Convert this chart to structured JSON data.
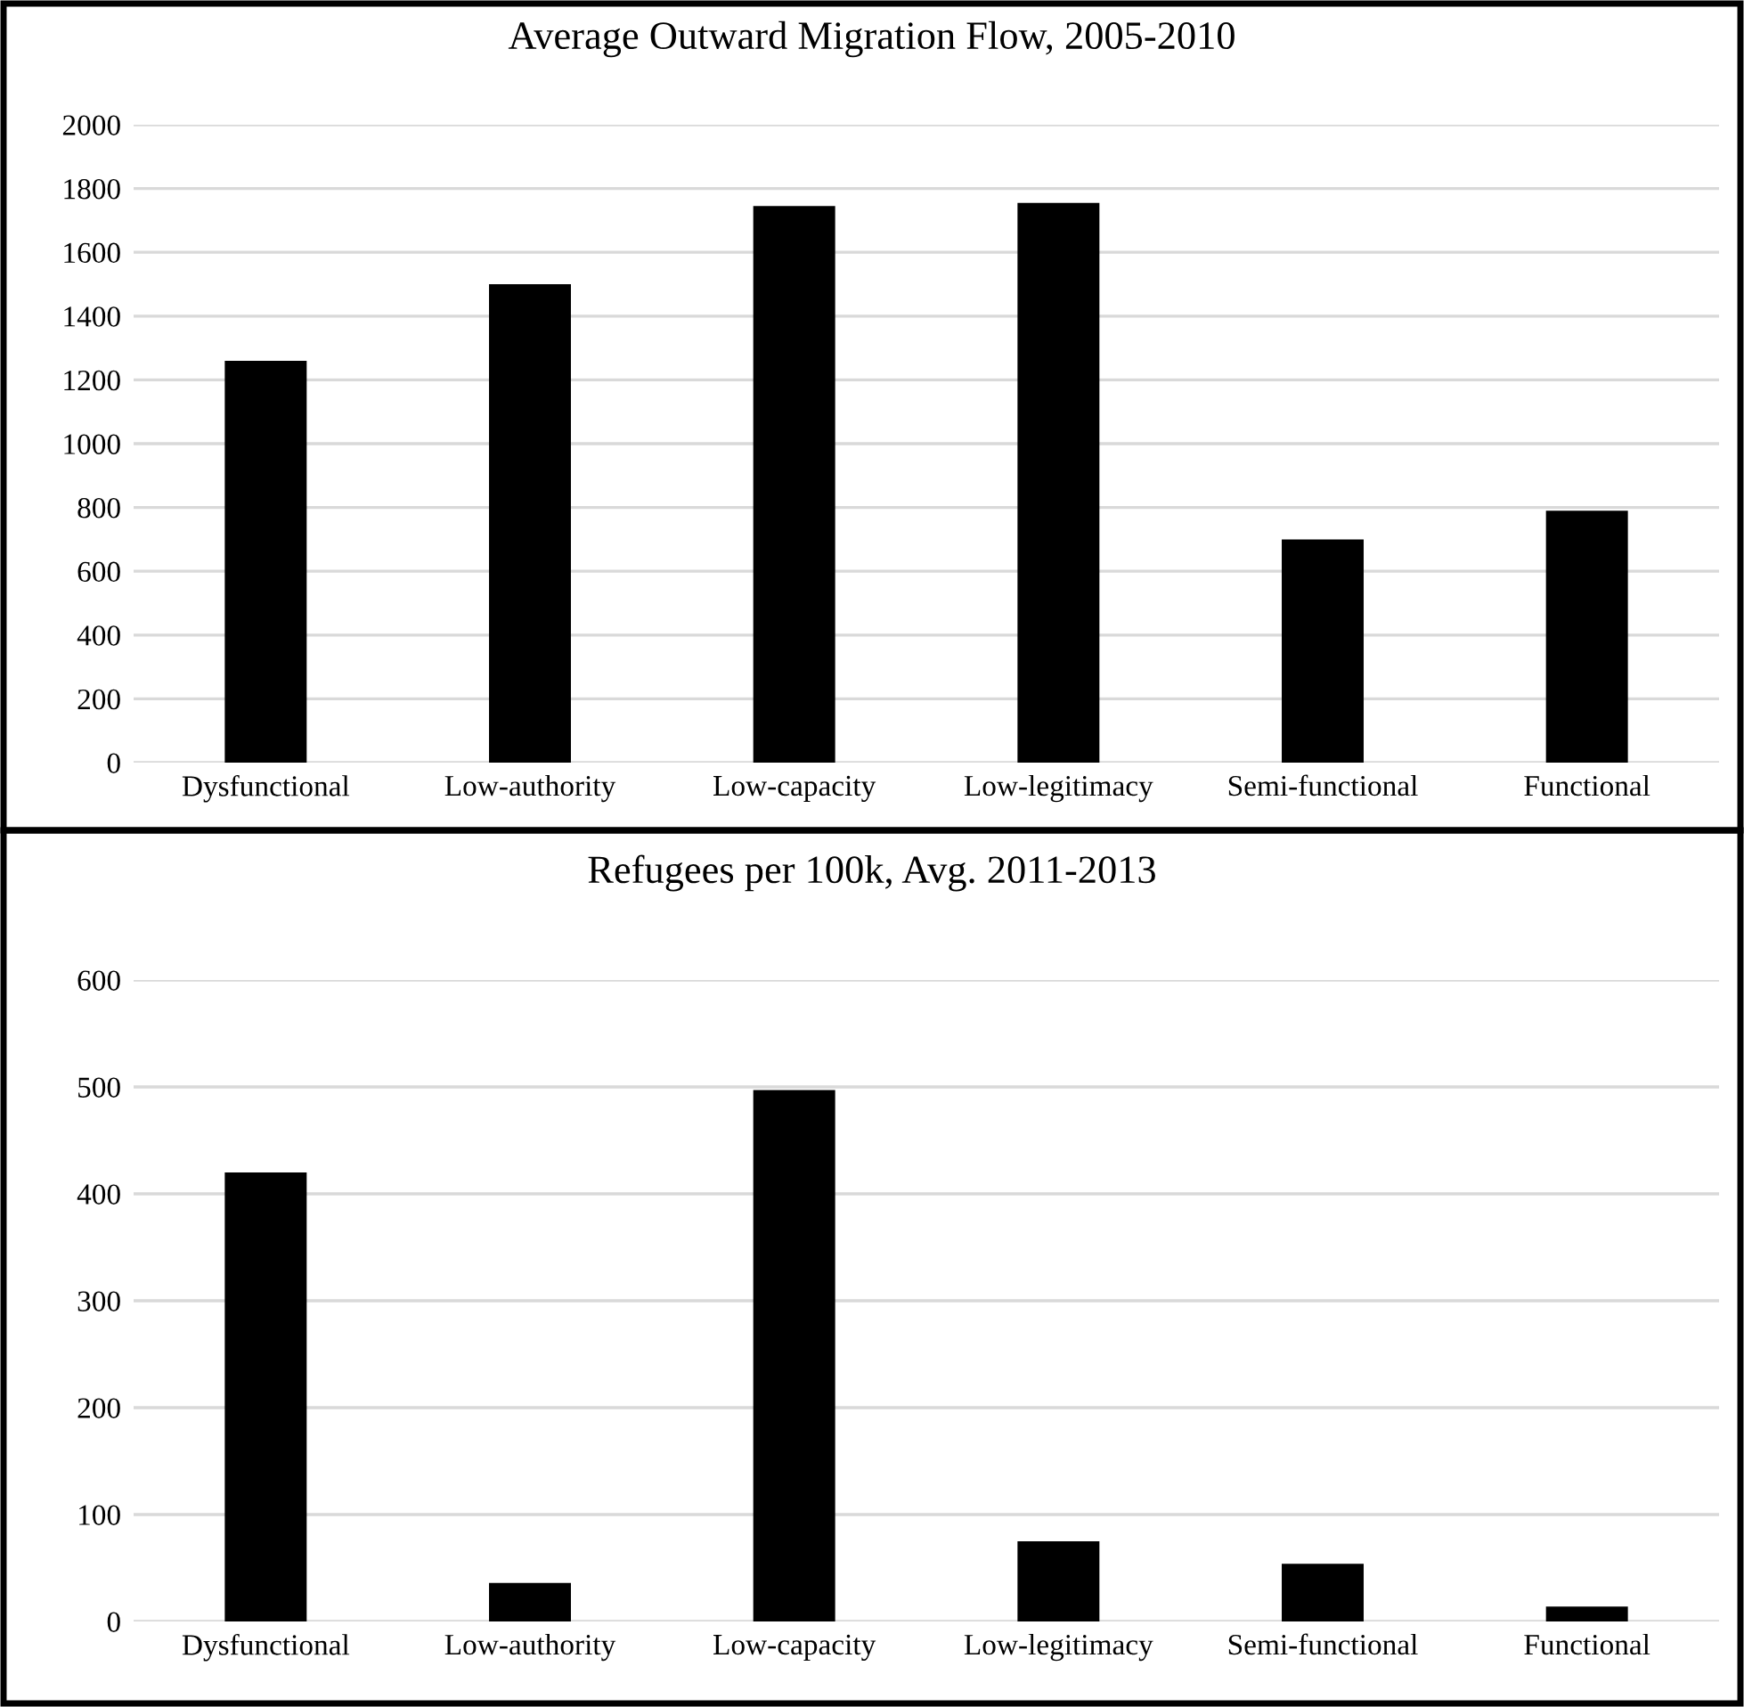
{
  "chart_data": [
    {
      "type": "bar",
      "title": "Average Outward Migration Flow, 2005-2010",
      "categories": [
        "Dysfunctional",
        "Low-authority",
        "Low-capacity",
        "Low-legitimacy",
        "Semi-functional",
        "Functional"
      ],
      "values": [
        1260,
        1500,
        1745,
        1755,
        700,
        790
      ],
      "color": "#000000",
      "ylim": [
        0,
        2000
      ],
      "yticks": [
        0,
        200,
        400,
        600,
        800,
        1000,
        1200,
        1400,
        1600,
        1800,
        2000
      ],
      "grid": "y"
    },
    {
      "type": "bar",
      "title": "Refugees per 100k, Avg. 2011-2013",
      "categories": [
        "Dysfunctional",
        "Low-authority",
        "Low-capacity",
        "Low-legitimacy",
        "Semi-functional",
        "Functional"
      ],
      "values": [
        420,
        36,
        497,
        75,
        54,
        14
      ],
      "color": "#000000",
      "ylim": [
        0,
        600
      ],
      "yticks": [
        0,
        100,
        200,
        300,
        400,
        500,
        600
      ],
      "grid": "y"
    }
  ]
}
